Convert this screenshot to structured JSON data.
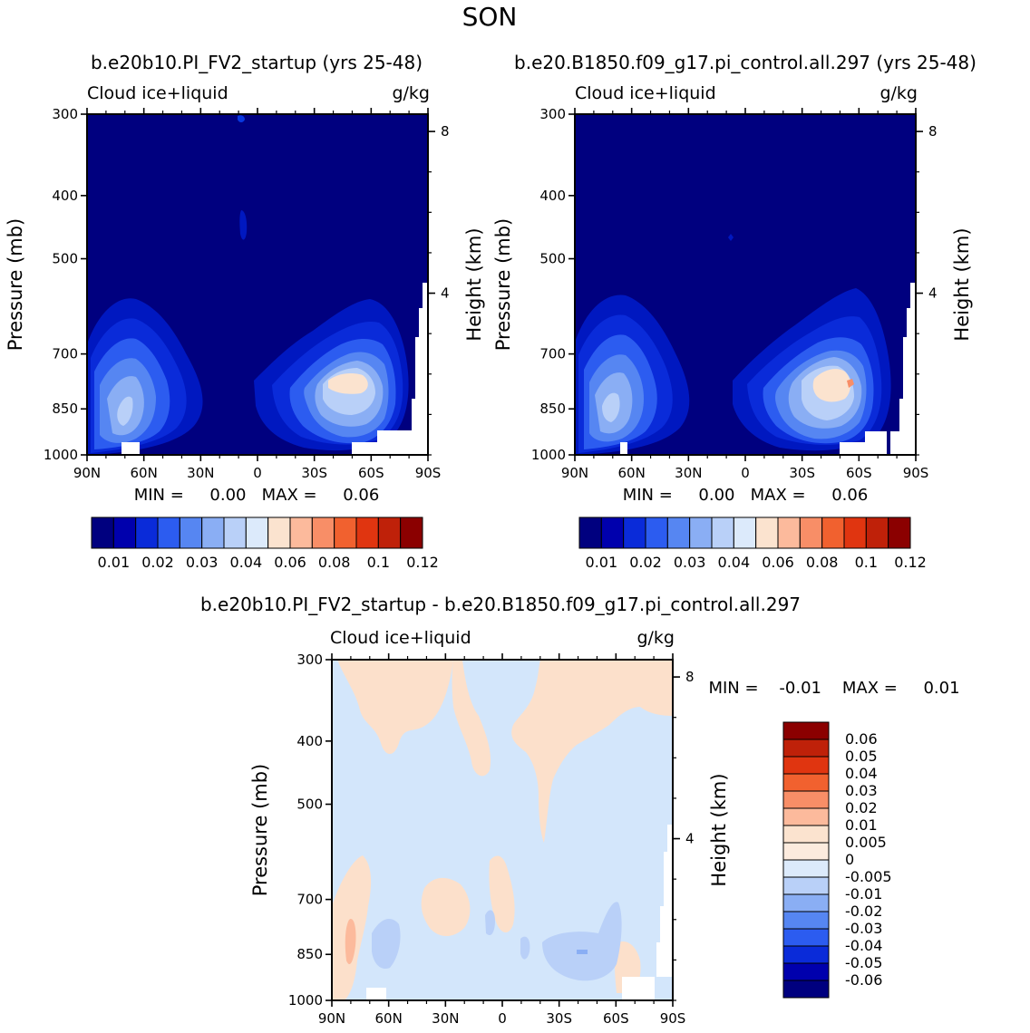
{
  "page_title": "SON",
  "colors": {
    "bg_levels": [
      "#00007F",
      "#0018C0",
      "#0838E0"
    ],
    "diff_bg": "#D3E6FB",
    "diff_pos": "#FCE0CB"
  },
  "chart_data": [
    {
      "id": "panel1",
      "type": "contour",
      "title": "b.e20b10.PI_FV2_startup (yrs 25-48)",
      "variable": "Cloud ice+liquid",
      "units": "g/kg",
      "ylabel": "Pressure (mb)",
      "y2label": "Height (km)",
      "x_ticks": [
        "90N",
        "60N",
        "30N",
        "0",
        "30S",
        "60S",
        "90S"
      ],
      "y_ticks": [
        "300",
        "400",
        "500",
        "700",
        "850",
        "1000"
      ],
      "y2_ticks": [
        "8",
        "4"
      ],
      "min_max_text": "MIN =     0.00   MAX =     0.06",
      "min": 0.0,
      "max": 0.06,
      "colorbar_labels": [
        "0.01",
        "0.02",
        "0.03",
        "0.04",
        "0.06",
        "0.08",
        "0.1",
        "0.12"
      ],
      "colorbar_colors": [
        "#00007F",
        "#0000AD",
        "#0A2BD9",
        "#2C5CF0",
        "#5686F2",
        "#8AAEF4",
        "#B9D0F8",
        "#DCEAFB",
        "#FBE3CF",
        "#FCBA9C",
        "#F88E67",
        "#F1612F",
        "#E03510",
        "#BF2109",
        "#8B0000"
      ]
    },
    {
      "id": "panel2",
      "type": "contour",
      "title": "b.e20.B1850.f09_g17.pi_control.all.297 (yrs 25-48)",
      "variable": "Cloud ice+liquid",
      "units": "g/kg",
      "ylabel": "Pressure (mb)",
      "y2label": "Height (km)",
      "x_ticks": [
        "90N",
        "60N",
        "30N",
        "0",
        "30S",
        "60S",
        "90S"
      ],
      "y_ticks": [
        "300",
        "400",
        "500",
        "700",
        "850",
        "1000"
      ],
      "y2_ticks": [
        "8",
        "4"
      ],
      "min_max_text": "MIN =     0.00   MAX =     0.06",
      "min": 0.0,
      "max": 0.06,
      "colorbar_labels": [
        "0.01",
        "0.02",
        "0.03",
        "0.04",
        "0.06",
        "0.08",
        "0.1",
        "0.12"
      ],
      "colorbar_colors": [
        "#00007F",
        "#0000AD",
        "#0A2BD9",
        "#2C5CF0",
        "#5686F2",
        "#8AAEF4",
        "#B9D0F8",
        "#DCEAFB",
        "#FBE3CF",
        "#FCBA9C",
        "#F88E67",
        "#F1612F",
        "#E03510",
        "#BF2109",
        "#8B0000"
      ]
    },
    {
      "id": "panel3",
      "type": "contour",
      "title": "b.e20b10.PI_FV2_startup - b.e20.B1850.f09_g17.pi_control.all.297",
      "variable": "Cloud ice+liquid",
      "units": "g/kg",
      "ylabel": "Pressure (mb)",
      "y2label": "Height (km)",
      "x_ticks": [
        "90N",
        "60N",
        "30N",
        "0",
        "30S",
        "60S",
        "90S"
      ],
      "y_ticks": [
        "300",
        "400",
        "500",
        "700",
        "850",
        "1000"
      ],
      "y2_ticks": [
        "8",
        "4"
      ],
      "min_max_text": "MIN =    -0.01    MAX =     0.01",
      "min": -0.01,
      "max": 0.01,
      "colorbar_labels": [
        "0.06",
        "0.05",
        "0.04",
        "0.03",
        "0.02",
        "0.01",
        "0.005",
        "0",
        "-0.005",
        "-0.01",
        "-0.02",
        "-0.03",
        "-0.04",
        "-0.05",
        "-0.06"
      ],
      "colorbar_colors": [
        "#8B0000",
        "#BF2109",
        "#E03510",
        "#F1612F",
        "#F88E67",
        "#FCBA9C",
        "#FBE3CF",
        "#FCEBDE",
        "#DCEAFB",
        "#B9D0F8",
        "#8AAEF4",
        "#5686F2",
        "#2C5CF0",
        "#0A2BD9",
        "#0000AD",
        "#00007F"
      ]
    }
  ]
}
